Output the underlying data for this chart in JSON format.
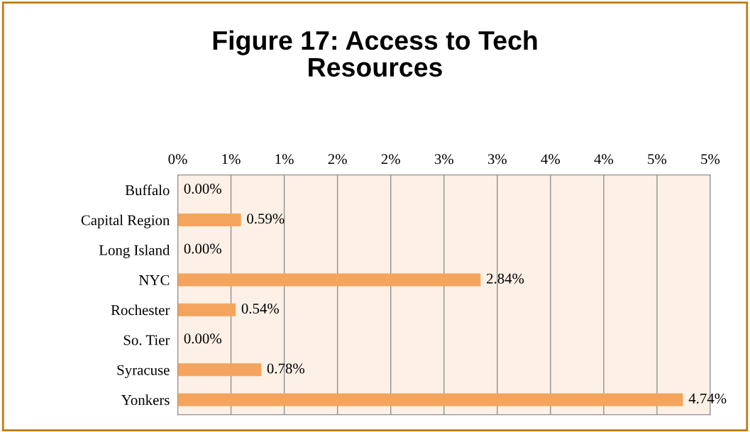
{
  "chart_data": {
    "type": "bar",
    "orientation": "horizontal",
    "title": "Figure 17: Access to Tech Resources",
    "categories": [
      "Buffalo",
      "Capital Region",
      "Long Island",
      "NYC",
      "Rochester",
      "So. Tier",
      "Syracuse",
      "Yonkers"
    ],
    "values": [
      0.0,
      0.59,
      0.0,
      2.84,
      0.54,
      0.0,
      0.78,
      4.74
    ],
    "value_labels": [
      "0.00%",
      "0.59%",
      "0.00%",
      "2.84%",
      "0.54%",
      "0.00%",
      "0.78%",
      "4.74%"
    ],
    "color": "#f4a45c",
    "xlim": [
      0,
      5
    ],
    "xticks": [
      {
        "value": 0,
        "label": "0%"
      },
      {
        "value": 0.5,
        "label": "1%"
      },
      {
        "value": 1.0,
        "label": "1%"
      },
      {
        "value": 1.5,
        "label": "2%"
      },
      {
        "value": 2.0,
        "label": "2%"
      },
      {
        "value": 2.5,
        "label": "3%"
      },
      {
        "value": 3.0,
        "label": "3%"
      },
      {
        "value": 3.5,
        "label": "4%"
      },
      {
        "value": 4.0,
        "label": "4%"
      },
      {
        "value": 4.5,
        "label": "5%"
      },
      {
        "value": 5.0,
        "label": "5%"
      }
    ],
    "grid": "x"
  }
}
